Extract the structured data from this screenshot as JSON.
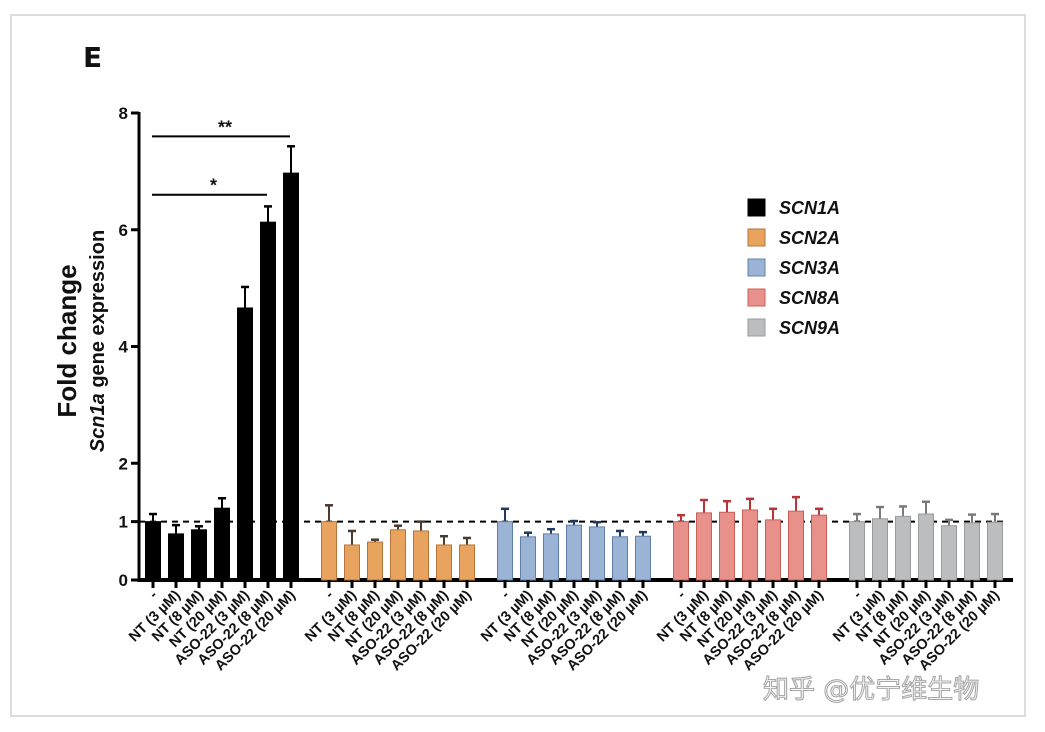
{
  "panel_label": "E",
  "watermark": "知乎 @优宁维生物",
  "chart_data": {
    "type": "bar",
    "title": "",
    "ylabel": "Fold change",
    "ylabel_sub_italic": "Scn1a",
    "ylabel_sub_rest": " gene expression",
    "xlabel": "",
    "ylim": [
      0,
      8
    ],
    "yticks": [
      0,
      1,
      2,
      4,
      6,
      8
    ],
    "reference_line": 1,
    "legend_position": "top-right",
    "categories": [
      "-",
      "NT (3 µM)",
      "NT (8 µM)",
      "NT (20 µM)",
      "ASO-22 (3 µM)",
      "ASO-22 (8 µM)",
      "ASO-22 (20 µM)"
    ],
    "series": [
      {
        "name": "SCN1A",
        "color": "#000000",
        "edge": "#000000",
        "err_color": "#000000",
        "values": [
          1.0,
          0.79,
          0.86,
          1.23,
          4.66,
          6.13,
          6.97
        ],
        "error_upper": [
          1.13,
          0.94,
          0.92,
          1.4,
          5.02,
          6.4,
          7.43
        ]
      },
      {
        "name": "SCN2A",
        "color": "#e8a45e",
        "edge": "#b5743a",
        "err_color": "#4a3a30",
        "values": [
          1.0,
          0.6,
          0.65,
          0.86,
          0.84,
          0.6,
          0.6
        ],
        "error_upper": [
          1.28,
          0.84,
          0.69,
          0.93,
          1.0,
          0.75,
          0.72
        ]
      },
      {
        "name": "SCN3A",
        "color": "#9bb4d6",
        "edge": "#5f7fa8",
        "err_color": "#1f3a5e",
        "values": [
          1.0,
          0.74,
          0.79,
          0.94,
          0.91,
          0.74,
          0.75
        ],
        "error_upper": [
          1.22,
          0.81,
          0.87,
          1.01,
          0.99,
          0.84,
          0.82
        ]
      },
      {
        "name": "SCN8A",
        "color": "#e8918a",
        "edge": "#c8605a",
        "err_color": "#b8343a",
        "values": [
          1.0,
          1.15,
          1.16,
          1.2,
          1.03,
          1.18,
          1.11
        ],
        "error_upper": [
          1.11,
          1.37,
          1.35,
          1.39,
          1.22,
          1.42,
          1.22
        ]
      },
      {
        "name": "SCN9A",
        "color": "#bcbdbf",
        "edge": "#9a9b9d",
        "err_color": "#7a7a7a",
        "values": [
          1.0,
          1.05,
          1.09,
          1.13,
          0.93,
          0.98,
          0.99
        ],
        "error_upper": [
          1.13,
          1.25,
          1.26,
          1.34,
          1.03,
          1.12,
          1.13
        ]
      }
    ],
    "significance": [
      {
        "series": "SCN1A",
        "from": "-",
        "to": "ASO-22 (20 µM)",
        "label": "**",
        "y": 7.6
      },
      {
        "series": "SCN1A",
        "from": "-",
        "to": "ASO-22 (8 µM)",
        "label": "*",
        "y": 6.6
      }
    ]
  }
}
